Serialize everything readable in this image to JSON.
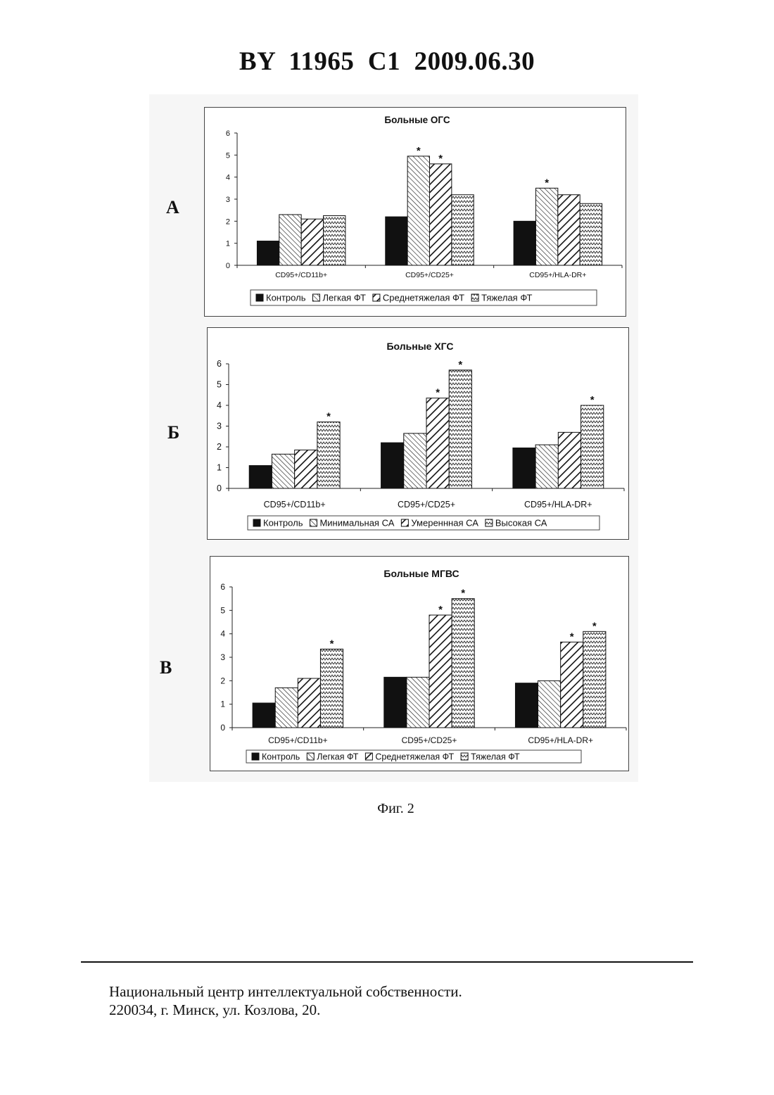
{
  "header": {
    "title": "BY  11965  C1  2009.06.30"
  },
  "panels": [
    {
      "letter": "А"
    },
    {
      "letter": "Б"
    },
    {
      "letter": "В"
    }
  ],
  "caption": "Фиг. 2",
  "footer": {
    "line1": "Национальный центр интеллектуальной собственности.",
    "line2": "220034, г. Минск, ул. Козлова, 20."
  },
  "colors": {
    "control": "#111111",
    "frame": "#444444",
    "figure_background": "#f6f6f6"
  },
  "chart_data": [
    {
      "type": "bar",
      "title": "Больные ОГС",
      "categories": [
        "CD95+/CD11b+",
        "CD95+/CD25+",
        "CD95+/HLA-DR+"
      ],
      "ylim": [
        0,
        6
      ],
      "yticks": [
        "0",
        "1",
        "2",
        "3",
        "4",
        "5",
        "6"
      ],
      "legend_position": "bottom",
      "series": [
        {
          "name": "Контроль",
          "pattern": "solid",
          "values": [
            1.1,
            2.2,
            2.0
          ]
        },
        {
          "name": "Легкая ФТ",
          "pattern": "fine-diagonal",
          "values": [
            2.3,
            4.95,
            3.5
          ]
        },
        {
          "name": "Среднетяжелая ФТ",
          "pattern": "wide-diagonal",
          "values": [
            2.1,
            4.6,
            3.2
          ]
        },
        {
          "name": "Тяжелая ФТ",
          "pattern": "zigzag",
          "values": [
            2.25,
            3.2,
            2.8
          ]
        }
      ],
      "significance": [
        [
          null,
          null,
          null,
          null
        ],
        [
          null,
          "*",
          "*",
          null
        ],
        [
          null,
          "*",
          null,
          null
        ]
      ]
    },
    {
      "type": "bar",
      "title": "Больные ХГС",
      "categories": [
        "CD95+/CD11b+",
        "CD95+/CD25+",
        "CD95+/HLA-DR+"
      ],
      "ylim": [
        0,
        6
      ],
      "yticks": [
        "0",
        "1",
        "2",
        "3",
        "4",
        "5",
        "6"
      ],
      "legend_position": "bottom",
      "series": [
        {
          "name": "Контроль",
          "pattern": "solid",
          "values": [
            1.1,
            2.2,
            1.95
          ]
        },
        {
          "name": "Минимальная СА",
          "pattern": "fine-diagonal",
          "values": [
            1.65,
            2.65,
            2.1
          ]
        },
        {
          "name": "Умереннная СА",
          "pattern": "wide-diagonal",
          "values": [
            1.85,
            4.35,
            2.7
          ]
        },
        {
          "name": "Высокая СА",
          "pattern": "zigzag",
          "values": [
            3.2,
            5.7,
            4.0
          ]
        }
      ],
      "significance": [
        [
          null,
          null,
          null,
          "*"
        ],
        [
          null,
          null,
          "*",
          "*"
        ],
        [
          null,
          null,
          null,
          "*"
        ]
      ]
    },
    {
      "type": "bar",
      "title": "Больные МГВС",
      "categories": [
        "CD95+/CD11b+",
        "CD95+/CD25+",
        "CD95+/HLA-DR+"
      ],
      "ylim": [
        0,
        6
      ],
      "yticks": [
        "0",
        "1",
        "2",
        "3",
        "4",
        "5",
        "6"
      ],
      "legend_position": "bottom",
      "series": [
        {
          "name": "Контроль",
          "pattern": "solid",
          "values": [
            1.05,
            2.15,
            1.9
          ]
        },
        {
          "name": "Легкая ФТ",
          "pattern": "fine-diagonal",
          "values": [
            1.7,
            2.15,
            2.0
          ]
        },
        {
          "name": "Среднетяжелая ФТ",
          "pattern": "wide-diagonal",
          "values": [
            2.1,
            4.8,
            3.65
          ]
        },
        {
          "name": "Тяжелая ФТ",
          "pattern": "zigzag",
          "values": [
            3.35,
            5.5,
            4.1
          ]
        }
      ],
      "significance": [
        [
          null,
          null,
          null,
          "*"
        ],
        [
          null,
          null,
          "*",
          "*"
        ],
        [
          null,
          null,
          "*",
          "*"
        ]
      ]
    }
  ]
}
